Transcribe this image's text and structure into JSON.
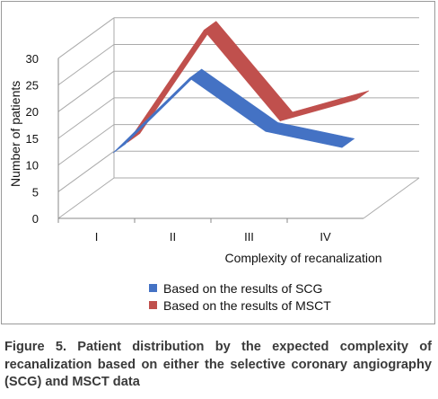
{
  "chart_data": {
    "type": "line",
    "style": "3d-ribbon",
    "categories": [
      "I",
      "II",
      "III",
      "IV"
    ],
    "series": [
      {
        "name": "Based on the results of SCG",
        "color": "#4472c4",
        "values": [
          10,
          24,
          14,
          11
        ]
      },
      {
        "name": "Based on the results of MSCT",
        "color": "#c0504d",
        "values": [
          10,
          31,
          14,
          18
        ]
      }
    ],
    "ylabel": "Number of patients",
    "xlabel": "Complexity of recanalization",
    "y_ticks": [
      "0",
      "5",
      "10",
      "15",
      "20",
      "25",
      "30"
    ],
    "ylim": [
      0,
      30
    ],
    "grid": true,
    "legend_position": "bottom"
  },
  "caption": "Figure 5. Patient distribution by the expected complexity of recanalization based on either the selective coronary angiography (SCG) and MSCT data"
}
